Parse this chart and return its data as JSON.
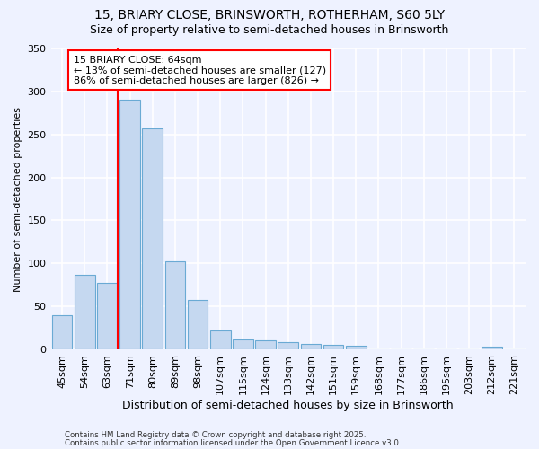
{
  "title1": "15, BRIARY CLOSE, BRINSWORTH, ROTHERHAM, S60 5LY",
  "title2": "Size of property relative to semi-detached houses in Brinsworth",
  "xlabel": "Distribution of semi-detached houses by size in Brinsworth",
  "ylabel": "Number of semi-detached properties",
  "categories": [
    "45sqm",
    "54sqm",
    "63sqm",
    "71sqm",
    "80sqm",
    "89sqm",
    "98sqm",
    "107sqm",
    "115sqm",
    "124sqm",
    "133sqm",
    "142sqm",
    "151sqm",
    "159sqm",
    "168sqm",
    "177sqm",
    "186sqm",
    "195sqm",
    "203sqm",
    "212sqm",
    "221sqm"
  ],
  "values": [
    40,
    87,
    77,
    290,
    257,
    102,
    58,
    22,
    12,
    11,
    8,
    6,
    5,
    4,
    0,
    0,
    0,
    0,
    0,
    3,
    0
  ],
  "bar_color": "#c5d8f0",
  "bar_edge_color": "#6aaad4",
  "annotation_text": "15 BRIARY CLOSE: 64sqm\n← 13% of semi-detached houses are smaller (127)\n86% of semi-detached houses are larger (826) →",
  "annotation_box_color": "white",
  "annotation_box_edge": "red",
  "red_line_color": "red",
  "red_line_index": 2,
  "ylim": [
    0,
    350
  ],
  "yticks": [
    0,
    50,
    100,
    150,
    200,
    250,
    300,
    350
  ],
  "background_color": "#eef2ff",
  "grid_color": "white",
  "footnote1": "Contains HM Land Registry data © Crown copyright and database right 2025.",
  "footnote2": "Contains public sector information licensed under the Open Government Licence v3.0.",
  "title_fontsize": 10,
  "subtitle_fontsize": 9,
  "tick_fontsize": 8,
  "ylabel_fontsize": 8,
  "xlabel_fontsize": 9
}
